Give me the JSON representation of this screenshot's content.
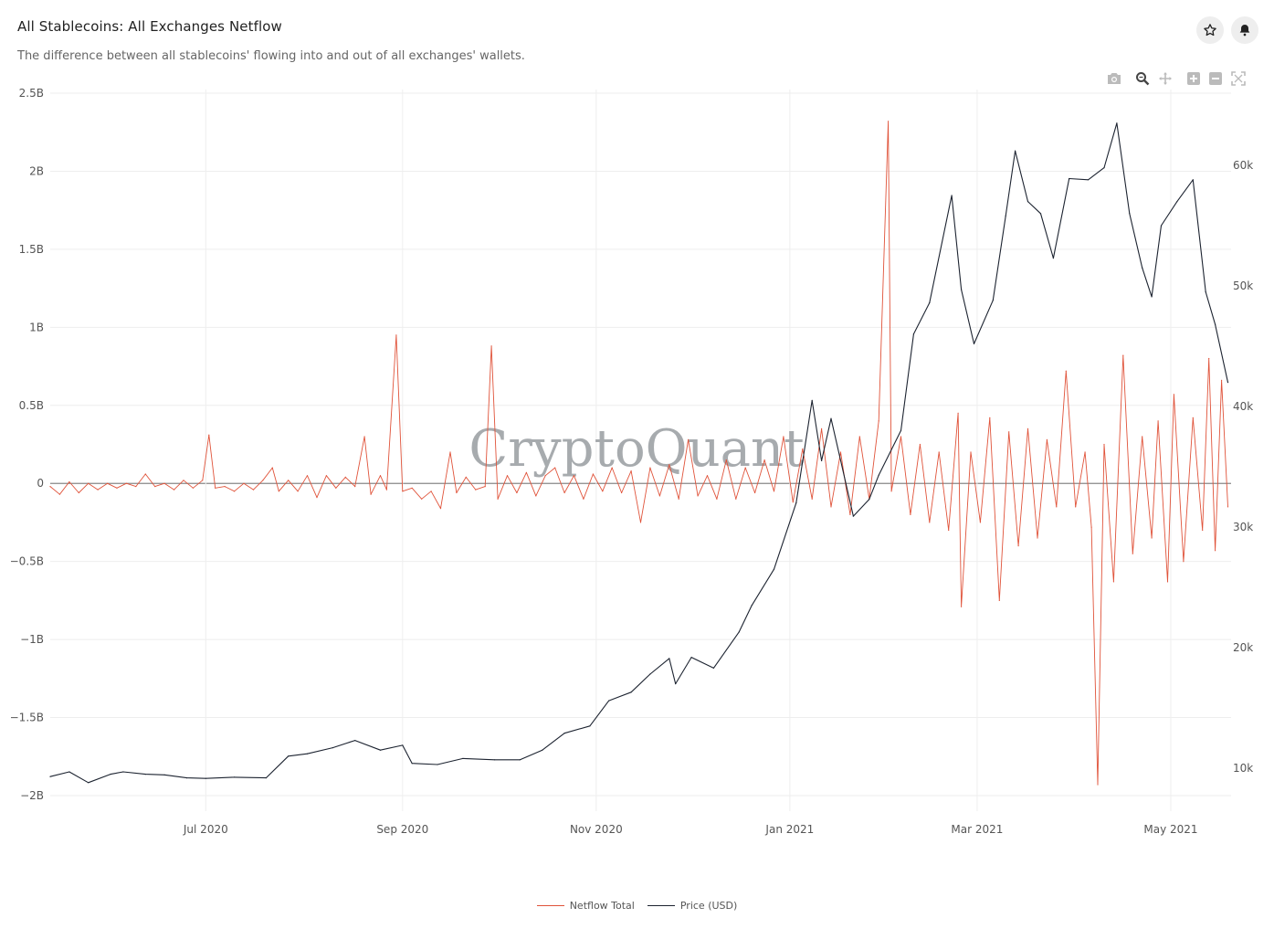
{
  "header": {
    "title": "All Stablecoins: All Exchanges Netflow",
    "subtitle": "The difference between all stablecoins' flowing into and out of all exchanges' wallets."
  },
  "toolbar": {
    "star_icon": "star-icon",
    "bell_icon": "bell-icon",
    "modebar_icons": [
      "camera-icon",
      "zoom-icon",
      "pan-icon",
      "zoom-in-icon",
      "zoom-out-icon",
      "autoscale-icon"
    ]
  },
  "watermark": "CryptoQuant",
  "colors": {
    "netflow": "#e0533a",
    "price": "#1c2330",
    "zero_line": "#888888",
    "grid": "#eeeeee",
    "icon_active": "#444444",
    "icon_inactive": "#bbbbbb"
  },
  "chart_data": {
    "type": "line",
    "x_range": [
      "2020-05-13",
      "2021-05-20"
    ],
    "x_ticks": [
      {
        "date": "2020-07-01",
        "label": "Jul 2020"
      },
      {
        "date": "2020-09-01",
        "label": "Sep 2020"
      },
      {
        "date": "2020-11-01",
        "label": "Nov 2020"
      },
      {
        "date": "2021-01-01",
        "label": "Jan 2021"
      },
      {
        "date": "2021-03-01",
        "label": "Mar 2021"
      },
      {
        "date": "2021-05-01",
        "label": "May 2021"
      }
    ],
    "y_left": {
      "range": [
        -2.1,
        2.5
      ],
      "unit": "B",
      "ticks": [
        {
          "v": 2.5,
          "label": "2.5B"
        },
        {
          "v": 2,
          "label": "2B"
        },
        {
          "v": 1.5,
          "label": "1.5B"
        },
        {
          "v": 1,
          "label": "1B"
        },
        {
          "v": 0.5,
          "label": "0.5B"
        },
        {
          "v": 0,
          "label": "0"
        },
        {
          "v": -0.5,
          "label": "−0.5B"
        },
        {
          "v": -1,
          "label": "−1B"
        },
        {
          "v": -1.5,
          "label": "−1.5B"
        },
        {
          "v": -2,
          "label": "−2B"
        }
      ]
    },
    "y_right": {
      "range": [
        7000,
        66500
      ],
      "ticks": [
        {
          "v": 10000,
          "label": "10k"
        },
        {
          "v": 20000,
          "label": "20k"
        },
        {
          "v": 30000,
          "label": "30k"
        },
        {
          "v": 40000,
          "label": "40k"
        },
        {
          "v": 50000,
          "label": "50k"
        },
        {
          "v": 60000,
          "label": "60k"
        }
      ]
    },
    "series": [
      {
        "name": "Netflow Total",
        "axis": "left",
        "color": "#e0533a",
        "points": [
          [
            "2020-05-13",
            -0.02
          ],
          [
            "2020-05-16",
            -0.07
          ],
          [
            "2020-05-19",
            0.01
          ],
          [
            "2020-05-22",
            -0.06
          ],
          [
            "2020-05-25",
            0.0
          ],
          [
            "2020-05-28",
            -0.04
          ],
          [
            "2020-05-31",
            0.0
          ],
          [
            "2020-06-03",
            -0.03
          ],
          [
            "2020-06-06",
            0.0
          ],
          [
            "2020-06-09",
            -0.02
          ],
          [
            "2020-06-12",
            0.06
          ],
          [
            "2020-06-15",
            -0.02
          ],
          [
            "2020-06-18",
            0.0
          ],
          [
            "2020-06-21",
            -0.04
          ],
          [
            "2020-06-24",
            0.02
          ],
          [
            "2020-06-27",
            -0.03
          ],
          [
            "2020-06-30",
            0.02
          ],
          [
            "2020-07-02",
            0.31
          ],
          [
            "2020-07-04",
            -0.03
          ],
          [
            "2020-07-07",
            -0.02
          ],
          [
            "2020-07-10",
            -0.05
          ],
          [
            "2020-07-13",
            0.0
          ],
          [
            "2020-07-16",
            -0.04
          ],
          [
            "2020-07-19",
            0.02
          ],
          [
            "2020-07-22",
            0.1
          ],
          [
            "2020-07-24",
            -0.05
          ],
          [
            "2020-07-27",
            0.02
          ],
          [
            "2020-07-30",
            -0.05
          ],
          [
            "2020-08-02",
            0.05
          ],
          [
            "2020-08-05",
            -0.09
          ],
          [
            "2020-08-08",
            0.05
          ],
          [
            "2020-08-11",
            -0.03
          ],
          [
            "2020-08-14",
            0.04
          ],
          [
            "2020-08-17",
            -0.02
          ],
          [
            "2020-08-20",
            0.3
          ],
          [
            "2020-08-22",
            -0.07
          ],
          [
            "2020-08-25",
            0.05
          ],
          [
            "2020-08-27",
            -0.04
          ],
          [
            "2020-08-30",
            0.95
          ],
          [
            "2020-09-01",
            -0.05
          ],
          [
            "2020-09-04",
            -0.03
          ],
          [
            "2020-09-07",
            -0.1
          ],
          [
            "2020-09-10",
            -0.05
          ],
          [
            "2020-09-13",
            -0.16
          ],
          [
            "2020-09-16",
            0.2
          ],
          [
            "2020-09-18",
            -0.06
          ],
          [
            "2020-09-21",
            0.04
          ],
          [
            "2020-09-24",
            -0.04
          ],
          [
            "2020-09-27",
            -0.02
          ],
          [
            "2020-09-29",
            0.88
          ],
          [
            "2020-10-01",
            -0.1
          ],
          [
            "2020-10-04",
            0.05
          ],
          [
            "2020-10-07",
            -0.06
          ],
          [
            "2020-10-10",
            0.07
          ],
          [
            "2020-10-13",
            -0.08
          ],
          [
            "2020-10-16",
            0.05
          ],
          [
            "2020-10-19",
            0.1
          ],
          [
            "2020-10-22",
            -0.06
          ],
          [
            "2020-10-25",
            0.05
          ],
          [
            "2020-10-28",
            -0.1
          ],
          [
            "2020-10-31",
            0.06
          ],
          [
            "2020-11-03",
            -0.05
          ],
          [
            "2020-11-06",
            0.1
          ],
          [
            "2020-11-09",
            -0.06
          ],
          [
            "2020-11-12",
            0.08
          ],
          [
            "2020-11-15",
            -0.25
          ],
          [
            "2020-11-18",
            0.1
          ],
          [
            "2020-11-21",
            -0.08
          ],
          [
            "2020-11-24",
            0.12
          ],
          [
            "2020-11-27",
            -0.1
          ],
          [
            "2020-11-30",
            0.28
          ],
          [
            "2020-12-03",
            -0.08
          ],
          [
            "2020-12-06",
            0.05
          ],
          [
            "2020-12-09",
            -0.1
          ],
          [
            "2020-12-12",
            0.15
          ],
          [
            "2020-12-15",
            -0.1
          ],
          [
            "2020-12-18",
            0.1
          ],
          [
            "2020-12-21",
            -0.06
          ],
          [
            "2020-12-24",
            0.15
          ],
          [
            "2020-12-27",
            -0.05
          ],
          [
            "2020-12-30",
            0.3
          ],
          [
            "2021-01-02",
            -0.12
          ],
          [
            "2021-01-05",
            0.22
          ],
          [
            "2021-01-08",
            -0.1
          ],
          [
            "2021-01-11",
            0.35
          ],
          [
            "2021-01-14",
            -0.15
          ],
          [
            "2021-01-17",
            0.2
          ],
          [
            "2021-01-20",
            -0.2
          ],
          [
            "2021-01-23",
            0.3
          ],
          [
            "2021-01-26",
            -0.1
          ],
          [
            "2021-01-29",
            0.4
          ],
          [
            "2021-02-01",
            2.32
          ],
          [
            "2021-02-02",
            -0.05
          ],
          [
            "2021-02-05",
            0.3
          ],
          [
            "2021-02-08",
            -0.2
          ],
          [
            "2021-02-11",
            0.25
          ],
          [
            "2021-02-14",
            -0.25
          ],
          [
            "2021-02-17",
            0.2
          ],
          [
            "2021-02-20",
            -0.3
          ],
          [
            "2021-02-23",
            0.45
          ],
          [
            "2021-02-24",
            -0.79
          ],
          [
            "2021-02-27",
            0.2
          ],
          [
            "2021-03-02",
            -0.25
          ],
          [
            "2021-03-05",
            0.42
          ],
          [
            "2021-03-08",
            -0.75
          ],
          [
            "2021-03-11",
            0.33
          ],
          [
            "2021-03-14",
            -0.4
          ],
          [
            "2021-03-17",
            0.35
          ],
          [
            "2021-03-20",
            -0.35
          ],
          [
            "2021-03-23",
            0.28
          ],
          [
            "2021-03-26",
            -0.15
          ],
          [
            "2021-03-29",
            0.72
          ],
          [
            "2021-04-01",
            -0.15
          ],
          [
            "2021-04-04",
            0.2
          ],
          [
            "2021-04-06",
            -0.28
          ],
          [
            "2021-04-08",
            -1.93
          ],
          [
            "2021-04-10",
            0.25
          ],
          [
            "2021-04-13",
            -0.63
          ],
          [
            "2021-04-16",
            0.82
          ],
          [
            "2021-04-19",
            -0.45
          ],
          [
            "2021-04-22",
            0.3
          ],
          [
            "2021-04-25",
            -0.35
          ],
          [
            "2021-04-27",
            0.4
          ],
          [
            "2021-04-30",
            -0.63
          ],
          [
            "2021-05-02",
            0.57
          ],
          [
            "2021-05-05",
            -0.5
          ],
          [
            "2021-05-08",
            0.42
          ],
          [
            "2021-05-11",
            -0.3
          ],
          [
            "2021-05-13",
            0.8
          ],
          [
            "2021-05-15",
            -0.43
          ],
          [
            "2021-05-17",
            0.66
          ],
          [
            "2021-05-19",
            -0.15
          ]
        ]
      },
      {
        "name": "Price (USD)",
        "axis": "right",
        "color": "#1c2330",
        "points": [
          [
            "2020-05-13",
            9300
          ],
          [
            "2020-05-19",
            9700
          ],
          [
            "2020-05-25",
            8800
          ],
          [
            "2020-06-01",
            9500
          ],
          [
            "2020-06-05",
            9700
          ],
          [
            "2020-06-12",
            9500
          ],
          [
            "2020-06-18",
            9450
          ],
          [
            "2020-06-25",
            9200
          ],
          [
            "2020-07-01",
            9150
          ],
          [
            "2020-07-10",
            9250
          ],
          [
            "2020-07-20",
            9200
          ],
          [
            "2020-07-27",
            11000
          ],
          [
            "2020-08-02",
            11200
          ],
          [
            "2020-08-10",
            11700
          ],
          [
            "2020-08-17",
            12300
          ],
          [
            "2020-08-25",
            11500
          ],
          [
            "2020-09-01",
            11900
          ],
          [
            "2020-09-04",
            10400
          ],
          [
            "2020-09-12",
            10300
          ],
          [
            "2020-09-20",
            10800
          ],
          [
            "2020-09-30",
            10700
          ],
          [
            "2020-10-08",
            10700
          ],
          [
            "2020-10-15",
            11500
          ],
          [
            "2020-10-22",
            12900
          ],
          [
            "2020-10-30",
            13500
          ],
          [
            "2020-11-05",
            15600
          ],
          [
            "2020-11-12",
            16300
          ],
          [
            "2020-11-18",
            17800
          ],
          [
            "2020-11-24",
            19100
          ],
          [
            "2020-11-26",
            17000
          ],
          [
            "2020-12-01",
            19200
          ],
          [
            "2020-12-08",
            18300
          ],
          [
            "2020-12-16",
            21300
          ],
          [
            "2020-12-20",
            23500
          ],
          [
            "2020-12-27",
            26500
          ],
          [
            "2021-01-03",
            32000
          ],
          [
            "2021-01-08",
            40500
          ],
          [
            "2021-01-11",
            35500
          ],
          [
            "2021-01-14",
            39000
          ],
          [
            "2021-01-21",
            30900
          ],
          [
            "2021-01-26",
            32300
          ],
          [
            "2021-01-29",
            34300
          ],
          [
            "2021-02-05",
            38000
          ],
          [
            "2021-02-09",
            46000
          ],
          [
            "2021-02-14",
            48600
          ],
          [
            "2021-02-21",
            57500
          ],
          [
            "2021-02-24",
            49700
          ],
          [
            "2021-02-28",
            45200
          ],
          [
            "2021-03-06",
            48800
          ],
          [
            "2021-03-10",
            55800
          ],
          [
            "2021-03-13",
            61200
          ],
          [
            "2021-03-17",
            57000
          ],
          [
            "2021-03-21",
            56000
          ],
          [
            "2021-03-25",
            52300
          ],
          [
            "2021-03-30",
            58900
          ],
          [
            "2021-04-05",
            58800
          ],
          [
            "2021-04-10",
            59800
          ],
          [
            "2021-04-14",
            63500
          ],
          [
            "2021-04-18",
            56000
          ],
          [
            "2021-04-22",
            51500
          ],
          [
            "2021-04-25",
            49100
          ],
          [
            "2021-04-28",
            55000
          ],
          [
            "2021-05-03",
            57000
          ],
          [
            "2021-05-08",
            58800
          ],
          [
            "2021-05-12",
            49500
          ],
          [
            "2021-05-15",
            46800
          ],
          [
            "2021-05-19",
            42000
          ]
        ]
      }
    ],
    "legend": {
      "placement": "bottom-center",
      "entries": [
        "Netflow Total",
        "Price (USD)"
      ]
    },
    "grid": true
  }
}
